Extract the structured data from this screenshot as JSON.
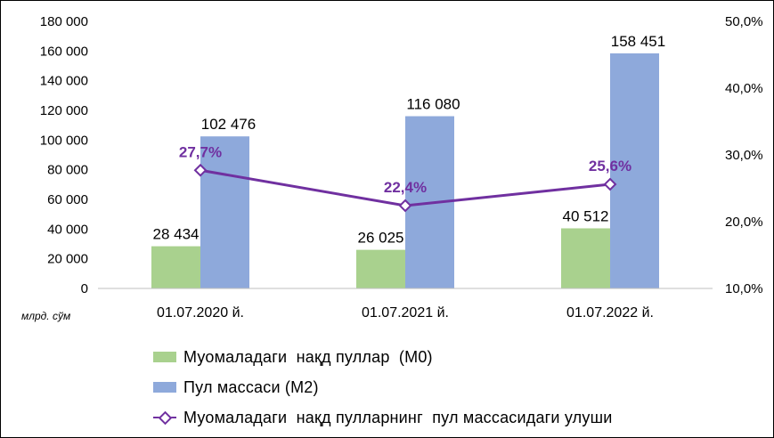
{
  "chart_data": {
    "type": "bar",
    "categories": [
      "01.07.2020 й.",
      "01.07.2021 й.",
      "01.07.2022 й."
    ],
    "series": [
      {
        "name": "Муомаладаги  нақд пуллар  (М0)",
        "values": [
          28434,
          26025,
          40512
        ],
        "labels": [
          "28 434",
          "26 025",
          "40 512"
        ],
        "color": "#A9D18E"
      },
      {
        "name": "Пул массаси (М2)",
        "values": [
          102476,
          116080,
          158451
        ],
        "labels": [
          "102 476",
          "116 080",
          "158 451"
        ],
        "color": "#8EA9DB"
      }
    ],
    "line_series": {
      "name": "Муомаладаги  нақд пулларнинг  пул массасидаги улуши",
      "values": [
        27.7,
        22.4,
        25.6
      ],
      "labels": [
        "27,7%",
        "22,4%",
        "25,6%"
      ],
      "color": "#7030A0",
      "axis": "secondary"
    },
    "ylim": [
      0,
      180000
    ],
    "y_ticks": [
      "0",
      "20 000",
      "40 000",
      "60 000",
      "80 000",
      "100 000",
      "120 000",
      "140 000",
      "160 000",
      "180 000"
    ],
    "y2lim": [
      10,
      50
    ],
    "y2_ticks": [
      "10,0%",
      "20,0%",
      "30,0%",
      "40,0%",
      "50,0%"
    ],
    "unit_label": "млрд. сўм",
    "grid": false,
    "legend_position": "bottom"
  }
}
